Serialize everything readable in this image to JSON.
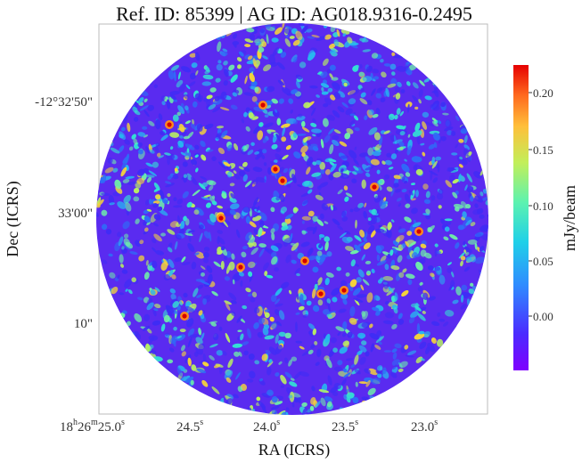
{
  "figure": {
    "title": "Ref. ID: 85399 | AG ID: AG018.9316-0.2495",
    "x_label": "RA (ICRS)",
    "y_label": "Dec (ICRS)",
    "x_ticks": [
      {
        "prefix": "18",
        "h": "h",
        "mid": "26",
        "m": "m",
        "val": "25.0",
        "s": "s"
      },
      {
        "val": "24.5",
        "s": "s"
      },
      {
        "val": "24.0",
        "s": "s"
      },
      {
        "val": "23.5",
        "s": "s"
      },
      {
        "val": "23.0",
        "s": "s"
      }
    ],
    "y_ticks": [
      "-12°32'50\"",
      "33'00\"",
      "10\""
    ],
    "colorbar": {
      "label": "mJy/beam",
      "ticks": [
        "0.20",
        "0.15",
        "0.10",
        "0.05",
        "0.00"
      ],
      "colormap": "jet",
      "range": [
        -0.04,
        0.225
      ]
    },
    "colors": {
      "frame": "#bbbbbb",
      "background": "#ffffff"
    }
  }
}
